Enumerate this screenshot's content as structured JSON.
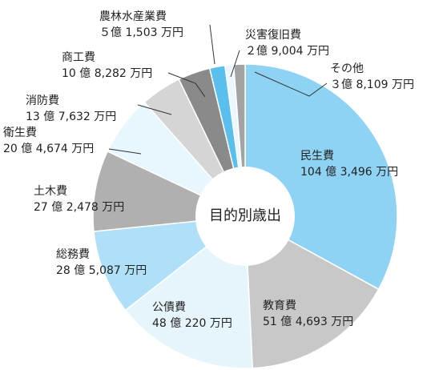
{
  "chart_data": {
    "type": "pie",
    "donut": true,
    "center_label": "目的別歳出",
    "slices": [
      {
        "name": "民生費",
        "value_text": "104 億 3,496 万円",
        "value": 1043496,
        "color": "#8fd3f4"
      },
      {
        "name": "教育費",
        "value_text": "51 億 4,693 万円",
        "value": 514693,
        "color": "#c8c8c8"
      },
      {
        "name": "公債費",
        "value_text": "48 億 220 万円",
        "value": 480220,
        "color": "#e6f5fc"
      },
      {
        "name": "総務費",
        "value_text": "28 億 5,087 万円",
        "value": 285087,
        "color": "#b0e0f7"
      },
      {
        "name": "土木費",
        "value_text": "27 億 2,478 万円",
        "value": 272478,
        "color": "#b0b0b0"
      },
      {
        "name": "衛生費",
        "value_text": "20 億 4,674 万円",
        "value": 204674,
        "color": "#e8f6fd"
      },
      {
        "name": "消防費",
        "value_text": "13 億 7,632 万円",
        "value": 137632,
        "color": "#d5d5d5"
      },
      {
        "name": "商工費",
        "value_text": "10 億 8,282 万円",
        "value": 108282,
        "color": "#8a8a8a"
      },
      {
        "name": "農林水産業費",
        "value_text": "５億 1,503 万円",
        "value": 51503,
        "color": "#5bbfee"
      },
      {
        "name": "災害復旧費",
        "value_text": "２億 9,004 万円",
        "value": 29004,
        "color": "#ecf7fd"
      },
      {
        "name": "その他",
        "value_text": "３億 8,109 万円",
        "value": 38109,
        "color": "#a3a3a3"
      }
    ]
  }
}
